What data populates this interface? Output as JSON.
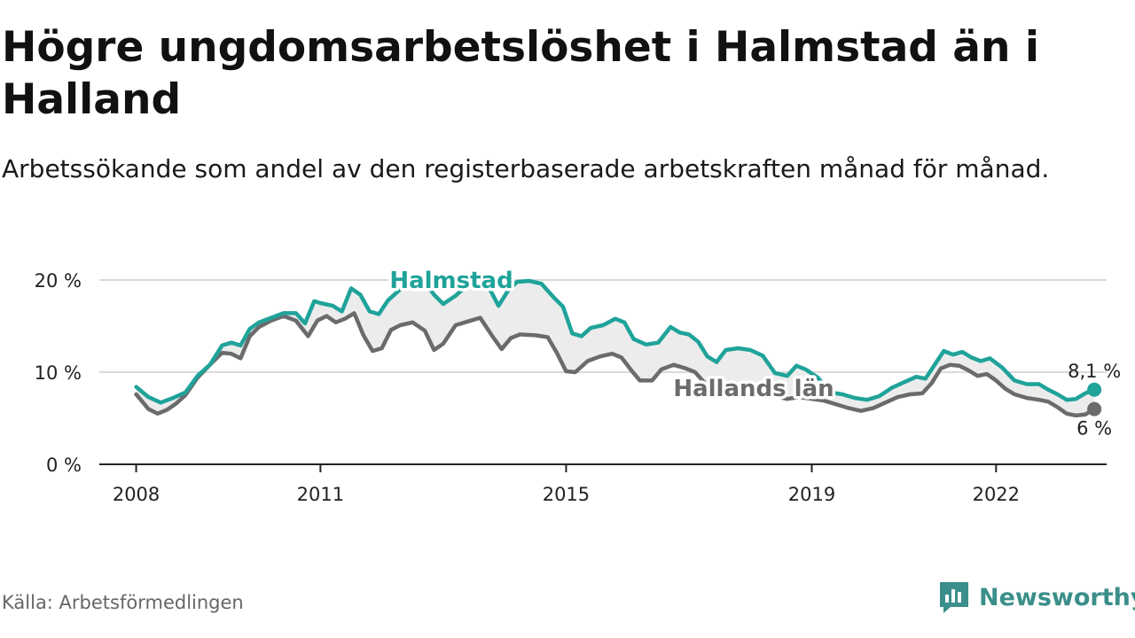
{
  "title": "Högre ungdomsarbetslöshet i Halmstad än i Halland",
  "subtitle": "Arbetssökande som andel av den registerbaserade arbetskraften månad för månad.",
  "source": "Källa: Arbetsförmedlingen",
  "brand": "Newsworthy",
  "colors": {
    "halmstad": "#1fa39a",
    "halland": "#6b6b6d",
    "band": "#ececec",
    "grid": "#d9d9d9",
    "brand": "#3b8f8a"
  },
  "chart_data": {
    "type": "line",
    "title": "Högre ungdomsarbetslöshet i Halmstad än i Halland",
    "xlabel": "",
    "ylabel": "",
    "ylim": [
      0,
      20
    ],
    "xlim": [
      2007.4,
      2023.8
    ],
    "grid": true,
    "yticks": [
      0,
      10,
      20
    ],
    "ytick_labels": [
      "0 %",
      "10 %",
      "20 %"
    ],
    "xticks": [
      2008,
      2011,
      2015,
      2019,
      2022
    ],
    "xtick_labels": [
      "2008",
      "2011",
      "2015",
      "2019",
      "2022"
    ],
    "series": [
      {
        "name": "Halmstad",
        "label": "Halmstad",
        "end_label": "8,1 %",
        "points": [
          [
            2008.0,
            8.4
          ],
          [
            2008.2,
            7.3
          ],
          [
            2008.4,
            6.7
          ],
          [
            2008.6,
            7.2
          ],
          [
            2008.8,
            7.8
          ],
          [
            2009.0,
            9.6
          ],
          [
            2009.2,
            10.8
          ],
          [
            2009.4,
            12.9
          ],
          [
            2009.55,
            13.2
          ],
          [
            2009.7,
            12.9
          ],
          [
            2009.85,
            14.7
          ],
          [
            2010.0,
            15.4
          ],
          [
            2010.2,
            15.9
          ],
          [
            2010.4,
            16.4
          ],
          [
            2010.6,
            16.4
          ],
          [
            2010.75,
            15.3
          ],
          [
            2010.9,
            17.7
          ],
          [
            2011.0,
            17.5
          ],
          [
            2011.2,
            17.2
          ],
          [
            2011.35,
            16.6
          ],
          [
            2011.5,
            19.1
          ],
          [
            2011.65,
            18.4
          ],
          [
            2011.8,
            16.6
          ],
          [
            2011.95,
            16.3
          ],
          [
            2012.1,
            17.8
          ],
          [
            2012.3,
            19.0
          ],
          [
            2012.5,
            19.6
          ],
          [
            2012.7,
            19.8
          ],
          [
            2012.85,
            18.4
          ],
          [
            2013.0,
            17.4
          ],
          [
            2013.2,
            18.3
          ],
          [
            2013.4,
            19.5
          ],
          [
            2013.6,
            19.9
          ],
          [
            2013.75,
            19.1
          ],
          [
            2013.9,
            17.2
          ],
          [
            2014.05,
            18.8
          ],
          [
            2014.2,
            19.8
          ],
          [
            2014.4,
            19.9
          ],
          [
            2014.6,
            19.6
          ],
          [
            2014.8,
            18.1
          ],
          [
            2014.95,
            17.1
          ],
          [
            2015.1,
            14.2
          ],
          [
            2015.25,
            13.9
          ],
          [
            2015.4,
            14.8
          ],
          [
            2015.6,
            15.1
          ],
          [
            2015.8,
            15.8
          ],
          [
            2015.95,
            15.4
          ],
          [
            2016.1,
            13.6
          ],
          [
            2016.3,
            13.0
          ],
          [
            2016.5,
            13.2
          ],
          [
            2016.7,
            14.9
          ],
          [
            2016.85,
            14.3
          ],
          [
            2017.0,
            14.1
          ],
          [
            2017.15,
            13.3
          ],
          [
            2017.3,
            11.7
          ],
          [
            2017.45,
            11.1
          ],
          [
            2017.6,
            12.4
          ],
          [
            2017.8,
            12.6
          ],
          [
            2018.0,
            12.4
          ],
          [
            2018.2,
            11.8
          ],
          [
            2018.4,
            9.9
          ],
          [
            2018.6,
            9.6
          ],
          [
            2018.75,
            10.7
          ],
          [
            2018.9,
            10.3
          ],
          [
            2019.1,
            9.4
          ],
          [
            2019.3,
            7.8
          ],
          [
            2019.5,
            7.6
          ],
          [
            2019.7,
            7.2
          ],
          [
            2019.9,
            7.0
          ],
          [
            2020.1,
            7.4
          ],
          [
            2020.3,
            8.3
          ],
          [
            2020.5,
            8.9
          ],
          [
            2020.7,
            9.5
          ],
          [
            2020.85,
            9.3
          ],
          [
            2021.0,
            10.8
          ],
          [
            2021.15,
            12.3
          ],
          [
            2021.3,
            11.9
          ],
          [
            2021.45,
            12.2
          ],
          [
            2021.6,
            11.6
          ],
          [
            2021.75,
            11.2
          ],
          [
            2021.9,
            11.5
          ],
          [
            2022.1,
            10.5
          ],
          [
            2022.3,
            9.1
          ],
          [
            2022.5,
            8.7
          ],
          [
            2022.7,
            8.7
          ],
          [
            2022.85,
            8.1
          ],
          [
            2023.0,
            7.6
          ],
          [
            2023.15,
            7.0
          ],
          [
            2023.3,
            7.1
          ],
          [
            2023.45,
            7.7
          ],
          [
            2023.6,
            8.1
          ]
        ]
      },
      {
        "name": "Hallands län",
        "label": "Hallands län",
        "end_label": "6 %",
        "points": [
          [
            2008.0,
            7.6
          ],
          [
            2008.2,
            6.0
          ],
          [
            2008.35,
            5.5
          ],
          [
            2008.5,
            5.9
          ],
          [
            2008.65,
            6.6
          ],
          [
            2008.8,
            7.5
          ],
          [
            2009.0,
            9.4
          ],
          [
            2009.2,
            10.8
          ],
          [
            2009.4,
            12.1
          ],
          [
            2009.55,
            12.0
          ],
          [
            2009.7,
            11.5
          ],
          [
            2009.85,
            13.9
          ],
          [
            2010.0,
            14.9
          ],
          [
            2010.2,
            15.6
          ],
          [
            2010.4,
            16.1
          ],
          [
            2010.6,
            15.6
          ],
          [
            2010.8,
            13.9
          ],
          [
            2010.95,
            15.6
          ],
          [
            2011.1,
            16.1
          ],
          [
            2011.25,
            15.4
          ],
          [
            2011.4,
            15.8
          ],
          [
            2011.55,
            16.4
          ],
          [
            2011.7,
            14.0
          ],
          [
            2011.85,
            12.3
          ],
          [
            2012.0,
            12.6
          ],
          [
            2012.15,
            14.6
          ],
          [
            2012.3,
            15.1
          ],
          [
            2012.5,
            15.4
          ],
          [
            2012.7,
            14.5
          ],
          [
            2012.85,
            12.4
          ],
          [
            2013.0,
            13.1
          ],
          [
            2013.2,
            15.1
          ],
          [
            2013.4,
            15.5
          ],
          [
            2013.6,
            15.9
          ],
          [
            2013.8,
            13.9
          ],
          [
            2013.95,
            12.5
          ],
          [
            2014.1,
            13.7
          ],
          [
            2014.25,
            14.1
          ],
          [
            2014.5,
            14.0
          ],
          [
            2014.7,
            13.8
          ],
          [
            2014.85,
            12.1
          ],
          [
            2015.0,
            10.1
          ],
          [
            2015.15,
            10.0
          ],
          [
            2015.35,
            11.2
          ],
          [
            2015.55,
            11.7
          ],
          [
            2015.75,
            12.0
          ],
          [
            2015.9,
            11.6
          ],
          [
            2016.05,
            10.3
          ],
          [
            2016.2,
            9.1
          ],
          [
            2016.4,
            9.1
          ],
          [
            2016.55,
            10.3
          ],
          [
            2016.75,
            10.8
          ],
          [
            2016.95,
            10.4
          ],
          [
            2017.1,
            10.0
          ],
          [
            2017.3,
            8.5
          ],
          [
            2017.45,
            8.2
          ],
          [
            2017.6,
            8.6
          ],
          [
            2017.8,
            8.3
          ],
          [
            2018.0,
            8.4
          ],
          [
            2018.2,
            8.0
          ],
          [
            2018.4,
            7.4
          ],
          [
            2018.6,
            7.1
          ],
          [
            2018.8,
            7.3
          ],
          [
            2019.0,
            7.1
          ],
          [
            2019.2,
            6.9
          ],
          [
            2019.4,
            6.5
          ],
          [
            2019.6,
            6.1
          ],
          [
            2019.8,
            5.8
          ],
          [
            2020.0,
            6.1
          ],
          [
            2020.2,
            6.7
          ],
          [
            2020.4,
            7.3
          ],
          [
            2020.6,
            7.6
          ],
          [
            2020.8,
            7.7
          ],
          [
            2020.95,
            8.8
          ],
          [
            2021.1,
            10.4
          ],
          [
            2021.25,
            10.8
          ],
          [
            2021.4,
            10.7
          ],
          [
            2021.55,
            10.2
          ],
          [
            2021.7,
            9.6
          ],
          [
            2021.85,
            9.8
          ],
          [
            2022.0,
            9.1
          ],
          [
            2022.15,
            8.2
          ],
          [
            2022.3,
            7.6
          ],
          [
            2022.5,
            7.2
          ],
          [
            2022.7,
            7.0
          ],
          [
            2022.85,
            6.8
          ],
          [
            2023.0,
            6.2
          ],
          [
            2023.15,
            5.5
          ],
          [
            2023.3,
            5.3
          ],
          [
            2023.45,
            5.4
          ],
          [
            2023.6,
            6.0
          ]
        ]
      }
    ]
  }
}
